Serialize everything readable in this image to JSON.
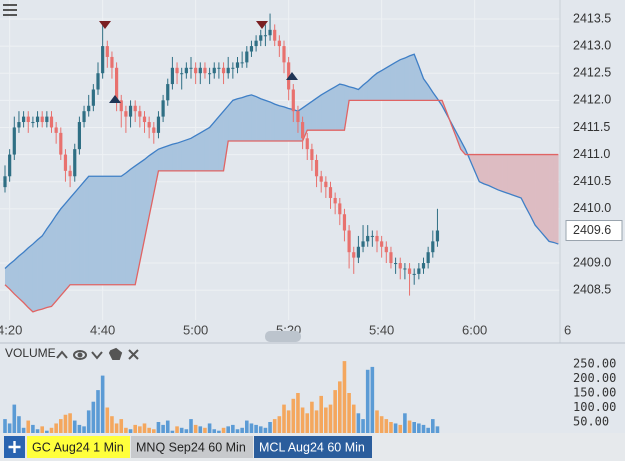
{
  "chart_data": [
    {
      "type": "candlestick",
      "categories": [
        null,
        "4:20",
        null,
        null,
        null,
        null,
        null,
        null,
        null,
        null,
        null,
        null,
        null,
        null,
        null,
        null,
        null,
        null,
        null,
        null,
        null,
        "4:40",
        null,
        null,
        null,
        null,
        null,
        null,
        null,
        null,
        null,
        null,
        null,
        null,
        null,
        null,
        null,
        null,
        null,
        null,
        null,
        "5:00",
        null,
        null,
        null,
        null,
        null,
        null,
        null,
        null,
        null,
        null,
        null,
        null,
        null,
        null,
        null,
        null,
        null,
        null,
        null,
        "5:20",
        null,
        null,
        null,
        null,
        null,
        null,
        null,
        null,
        null,
        null,
        null,
        null,
        null,
        null,
        null,
        null,
        null,
        null,
        null,
        "5:40",
        null,
        null,
        null,
        null,
        null,
        null,
        null,
        null,
        null,
        null,
        null,
        null,
        null,
        null,
        null,
        null,
        null,
        null,
        null,
        "6:00",
        null,
        null,
        null,
        null,
        null,
        null,
        null,
        null,
        null,
        null,
        null,
        null,
        null,
        null,
        null,
        null,
        null,
        null,
        null,
        "6"
      ],
      "open": [
        2410.4,
        2410.6,
        2411.0,
        2411.5,
        2411.6,
        2411.7,
        2411.6,
        2411.6,
        2411.7,
        2411.6,
        2411.7,
        2411.5,
        2411.4,
        2411.0,
        2410.7,
        2410.6,
        2411.1,
        2411.6,
        2411.8,
        2411.9,
        2412.2,
        2412.5,
        2413.0,
        2412.8,
        2412.6,
        2412.0,
        2411.8,
        2411.7,
        2411.9,
        2411.8,
        2411.7,
        2411.6,
        2411.5,
        2411.4,
        2411.7,
        2412.0,
        2412.3,
        2412.6,
        2412.5,
        2412.5,
        2412.6,
        2412.6,
        2412.5,
        2412.6,
        2412.5,
        2412.5,
        2412.6,
        2412.6,
        2412.5,
        2412.6,
        2412.6,
        2412.7,
        2412.7,
        2412.9,
        2413.0,
        2413.1,
        2413.2,
        2413.2,
        2413.3,
        2413.1,
        2413.0,
        2412.7,
        2412.2,
        2411.8,
        2411.6,
        2411.3,
        2411.1,
        2410.9,
        2410.6,
        2410.5,
        2410.4,
        2410.2,
        2410.1,
        2409.9,
        2409.6,
        2409.2,
        2409.1,
        2409.3,
        2409.4,
        2409.5,
        2409.5,
        2409.4,
        2409.3,
        2409.2,
        2409.0,
        2409.0,
        2408.9,
        2408.9,
        2408.8,
        2408.8,
        2408.9,
        2409.0,
        2409.2,
        2409.4,
        null,
        null,
        null,
        null,
        null,
        null,
        null,
        null,
        null,
        null,
        null,
        null,
        null,
        null,
        null,
        null,
        null,
        null,
        null,
        null,
        null,
        null,
        null,
        null,
        null,
        null,
        null,
        null
      ],
      "high": [
        2410.8,
        2411.1,
        2411.7,
        2411.8,
        2411.8,
        2411.8,
        2411.7,
        2411.8,
        2411.8,
        2411.8,
        2411.8,
        2411.6,
        2411.5,
        2411.1,
        2410.8,
        2411.2,
        2411.7,
        2411.9,
        2412.1,
        2412.3,
        2412.7,
        2413.4,
        2413.1,
        2412.9,
        2412.7,
        2412.1,
        2411.9,
        2412.0,
        2412.0,
        2411.9,
        2411.8,
        2411.7,
        2411.6,
        2411.8,
        2412.1,
        2412.4,
        2412.8,
        2412.7,
        2412.6,
        2412.7,
        2412.8,
        2412.7,
        2412.7,
        2412.7,
        2412.6,
        2412.7,
        2412.7,
        2412.7,
        2412.8,
        2412.7,
        2412.8,
        2412.9,
        2413.0,
        2413.1,
        2413.2,
        2413.3,
        2413.4,
        2413.6,
        2413.4,
        2413.2,
        2413.1,
        2412.8,
        2412.3,
        2411.9,
        2411.7,
        2411.4,
        2411.2,
        2411.0,
        2410.7,
        2410.6,
        2410.5,
        2410.3,
        2410.2,
        2410.0,
        2409.7,
        2409.3,
        2409.5,
        2409.7,
        2409.7,
        2409.6,
        2409.6,
        2409.5,
        2409.4,
        2409.3,
        2409.1,
        2409.1,
        2409.0,
        2409.0,
        2408.9,
        2409.0,
        2409.1,
        2409.3,
        2409.6,
        2410.0,
        null,
        null,
        null,
        null,
        null,
        null,
        null,
        null,
        null,
        null,
        null,
        null,
        null,
        null,
        null,
        null,
        null,
        null,
        null,
        null,
        null,
        null,
        null,
        null,
        null,
        null,
        null,
        null
      ],
      "low": [
        2410.3,
        2410.5,
        2410.9,
        2411.4,
        2411.5,
        2411.4,
        2411.5,
        2411.5,
        2411.5,
        2411.5,
        2411.4,
        2411.2,
        2410.9,
        2410.5,
        2410.4,
        2410.5,
        2411.0,
        2411.5,
        2411.7,
        2411.8,
        2412.1,
        2412.4,
        2412.6,
        2412.4,
        2411.8,
        2411.5,
        2411.4,
        2411.5,
        2411.6,
        2411.5,
        2411.4,
        2411.3,
        2411.2,
        2411.3,
        2411.6,
        2411.9,
        2412.2,
        2412.3,
        2412.2,
        2412.4,
        2412.4,
        2412.3,
        2412.3,
        2412.4,
        2412.3,
        2412.4,
        2412.4,
        2412.3,
        2412.4,
        2412.4,
        2412.5,
        2412.6,
        2412.6,
        2412.8,
        2412.9,
        2413.0,
        2413.0,
        2413.1,
        2413.0,
        2412.8,
        2412.5,
        2412.0,
        2411.6,
        2411.4,
        2411.1,
        2410.9,
        2410.7,
        2410.4,
        2410.3,
        2410.2,
        2410.0,
        2409.9,
        2409.7,
        2409.4,
        2408.9,
        2408.8,
        2409.0,
        2409.2,
        2409.3,
        2409.3,
        2409.2,
        2409.1,
        2409.0,
        2408.9,
        2408.8,
        2408.7,
        2408.7,
        2408.4,
        2408.6,
        2408.7,
        2408.8,
        2408.9,
        2409.1,
        2409.3,
        null,
        null,
        null,
        null,
        null,
        null,
        null,
        null,
        null,
        null,
        null,
        null,
        null,
        null,
        null,
        null,
        null,
        null,
        null,
        null,
        null,
        null,
        null,
        null,
        null,
        null,
        null,
        null
      ],
      "close": [
        2410.6,
        2411.0,
        2411.5,
        2411.6,
        2411.7,
        2411.6,
        2411.6,
        2411.7,
        2411.6,
        2411.7,
        2411.5,
        2411.4,
        2411.0,
        2410.7,
        2410.6,
        2411.1,
        2411.6,
        2411.8,
        2411.9,
        2412.2,
        2412.5,
        2413.0,
        2412.8,
        2412.6,
        2412.0,
        2411.8,
        2411.7,
        2411.9,
        2411.8,
        2411.7,
        2411.6,
        2411.5,
        2411.4,
        2411.7,
        2412.0,
        2412.3,
        2412.6,
        2412.5,
        2412.5,
        2412.6,
        2412.6,
        2412.5,
        2412.6,
        2412.5,
        2412.5,
        2412.6,
        2412.6,
        2412.5,
        2412.6,
        2412.6,
        2412.7,
        2412.7,
        2412.9,
        2413.0,
        2413.1,
        2413.2,
        2413.2,
        2413.3,
        2413.1,
        2413.0,
        2412.7,
        2412.2,
        2411.8,
        2411.6,
        2411.3,
        2411.1,
        2410.9,
        2410.6,
        2410.5,
        2410.4,
        2410.2,
        2410.1,
        2409.9,
        2409.6,
        2409.2,
        2409.1,
        2409.3,
        2409.4,
        2409.5,
        2409.5,
        2409.4,
        2409.3,
        2409.2,
        2409.0,
        2409.0,
        2408.9,
        2408.9,
        2408.8,
        2408.8,
        2408.9,
        2409.0,
        2409.2,
        2409.4,
        2409.6,
        null,
        null,
        null,
        null,
        null,
        null,
        null,
        null,
        null,
        null,
        null,
        null,
        null,
        null,
        null,
        null,
        null,
        null,
        null,
        null,
        null,
        null,
        null,
        null,
        null,
        null,
        null,
        null
      ],
      "up_color": "#2f6f84",
      "down_color": "#e8716e",
      "cloud": {
        "span_a": {
          "color": "#3f7fc6",
          "values": [
            2408.9,
            2408.98,
            2409.05,
            2409.13,
            2409.2,
            2409.28,
            2409.35,
            2409.43,
            2409.5,
            2409.63,
            2409.75,
            2409.88,
            2410.0,
            2410.1,
            2410.2,
            2410.3,
            2410.4,
            2410.5,
            2410.6,
            2410.6,
            2410.6,
            2410.6,
            2410.6,
            2410.6,
            2410.6,
            2410.6,
            2410.66,
            2410.73,
            2410.79,
            2410.85,
            2410.91,
            2410.98,
            2411.04,
            2411.1,
            2411.13,
            2411.16,
            2411.19,
            2411.21,
            2411.24,
            2411.27,
            2411.3,
            2411.35,
            2411.4,
            2411.45,
            2411.5,
            2411.6,
            2411.7,
            2411.8,
            2411.9,
            2412.0,
            2412.03,
            2412.05,
            2412.08,
            2412.1,
            2412.07,
            2412.03,
            2412.0,
            2411.97,
            2411.93,
            2411.9,
            2411.88,
            2411.85,
            2411.83,
            2411.8,
            2411.86,
            2411.92,
            2411.98,
            2412.04,
            2412.1,
            2412.15,
            2412.2,
            2412.25,
            2412.3,
            2412.28,
            2412.25,
            2412.23,
            2412.2,
            2412.28,
            2412.35,
            2412.43,
            2412.5,
            2412.55,
            2412.6,
            2412.65,
            2412.7,
            2412.75,
            2412.78,
            2412.82,
            2412.85,
            2412.63,
            2412.4,
            2412.28,
            2412.15,
            2412.03,
            2411.9,
            2411.74,
            2411.58,
            2411.42,
            2411.26,
            2411.1,
            2410.9,
            2410.7,
            2410.5,
            2410.46,
            2410.43,
            2410.39,
            2410.35,
            2410.32,
            2410.29,
            2410.26,
            2410.23,
            2410.2,
            2410.03,
            2409.87,
            2409.7,
            2409.6,
            2409.5,
            2409.4,
            2409.38,
            2409.35,
            null,
            null
          ]
        },
        "span_b": {
          "color": "#e06464",
          "values": [
            2408.6,
            2408.52,
            2408.43,
            2408.35,
            2408.27,
            2408.18,
            2408.1,
            2408.13,
            2408.15,
            2408.18,
            2408.2,
            2408.3,
            2408.4,
            2408.5,
            2408.6,
            2408.6,
            2408.6,
            2408.6,
            2408.6,
            2408.6,
            2408.6,
            2408.6,
            2408.6,
            2408.6,
            2408.6,
            2408.6,
            2408.6,
            2408.6,
            2408.6,
            2409.02,
            2409.44,
            2409.86,
            2410.28,
            2410.7,
            2410.7,
            2410.7,
            2410.7,
            2410.7,
            2410.7,
            2410.7,
            2410.7,
            2410.7,
            2410.7,
            2410.7,
            2410.7,
            2410.7,
            2410.7,
            2410.7,
            2411.25,
            2411.25,
            2411.25,
            2411.25,
            2411.25,
            2411.25,
            2411.25,
            2411.25,
            2411.25,
            2411.25,
            2411.25,
            2411.25,
            2411.25,
            2411.25,
            2411.25,
            2411.25,
            2411.25,
            2411.45,
            2411.45,
            2411.45,
            2411.45,
            2411.45,
            2411.45,
            2411.45,
            2411.45,
            2411.45,
            2412.0,
            2412.0,
            2412.0,
            2412.0,
            2412.0,
            2412.0,
            2412.0,
            2412.0,
            2412.0,
            2412.0,
            2412.0,
            2412.0,
            2412.0,
            2412.0,
            2412.0,
            2412.0,
            2412.0,
            2412.0,
            2412.0,
            2412.0,
            2412.0,
            2411.78,
            2411.55,
            2411.33,
            2411.1,
            2411.0,
            2411.0,
            2411.0,
            2411.0,
            2411.0,
            2411.0,
            2411.0,
            2411.0,
            2411.0,
            2411.0,
            2411.0,
            2411.0,
            2411.0,
            2411.0,
            2411.0,
            2411.0,
            2411.0,
            2411.0,
            2411.0,
            2411.0,
            2411.0,
            null,
            null
          ]
        },
        "up_fill": "#a9c4de",
        "down_fill": "#ddbcc2"
      },
      "ylim": [
        2407.95,
        2413.85
      ],
      "yticks": [
        2408.5,
        {
          "value": 2409,
          "label": "2409.0"
        },
        {
          "value": 2410,
          "label": "2410.0"
        },
        2410.5,
        {
          "value": 2411,
          "label": "2411.0"
        },
        2411.5,
        {
          "value": 2412,
          "label": "2412.0"
        },
        2412.5,
        {
          "value": 2413,
          "label": "2413.0"
        },
        2413.5
      ],
      "last_price": 2409.6,
      "grid": true
    },
    {
      "type": "bar",
      "title": "VOLUME",
      "values": [
        60,
        45,
        110,
        70,
        30,
        55,
        40,
        25,
        35,
        20,
        30,
        45,
        60,
        75,
        80,
        55,
        40,
        35,
        90,
        120,
        160,
        210,
        100,
        70,
        45,
        60,
        30,
        25,
        40,
        35,
        45,
        30,
        25,
        50,
        40,
        55,
        20,
        35,
        30,
        25,
        60,
        40,
        35,
        30,
        45,
        25,
        20,
        30,
        35,
        40,
        25,
        30,
        55,
        45,
        40,
        35,
        30,
        50,
        60,
        70,
        110,
        90,
        130,
        150,
        100,
        80,
        120,
        90,
        140,
        100,
        110,
        160,
        190,
        260,
        150,
        110,
        80,
        60,
        230,
        240,
        90,
        70,
        60,
        50,
        45,
        40,
        80,
        55,
        50,
        45,
        40,
        30,
        60,
        35
      ],
      "up_color": "#5b9bd5",
      "down_color": "#f4a75e",
      "ylim": [
        0,
        300
      ],
      "yticks": [
        {
          "value": 50,
          "label": "50.00"
        },
        {
          "value": 100,
          "label": "100.00"
        },
        {
          "value": 150,
          "label": "150.00"
        },
        {
          "value": 200,
          "label": "200.00"
        },
        {
          "value": 250,
          "label": "250.00"
        }
      ]
    }
  ],
  "tabs": [
    "GC Aug24 1 Min",
    "MNQ Sep24 60 Min",
    "MCL Aug24 60 Min"
  ]
}
